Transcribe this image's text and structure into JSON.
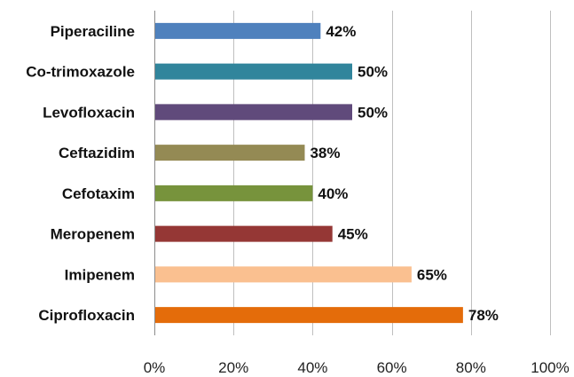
{
  "chart_data": {
    "type": "bar",
    "orientation": "horizontal",
    "categories": [
      "Piperaciline",
      "Co-trimoxazole",
      "Levofloxacin",
      "Ceftazidim",
      "Cefotaxim",
      "Meropenem",
      "Imipenem",
      "Ciprofloxacin"
    ],
    "values": [
      42,
      50,
      50,
      38,
      40,
      45,
      65,
      78
    ],
    "data_labels": [
      "42%",
      "50%",
      "50%",
      "38%",
      "40%",
      "45%",
      "65%",
      "78%"
    ],
    "colors": [
      "#4f81bd",
      "#31859c",
      "#604a7b",
      "#948a54",
      "#77933c",
      "#953735",
      "#fac090",
      "#e46c0a"
    ],
    "xlim": [
      0,
      100
    ],
    "xticks": [
      0,
      20,
      40,
      60,
      80,
      100
    ],
    "xtick_labels": [
      "0%",
      "20%",
      "40%",
      "60%",
      "80%",
      "100%"
    ],
    "title": "",
    "xlabel": "",
    "ylabel": "",
    "grid": "vertical",
    "legend": "none"
  }
}
